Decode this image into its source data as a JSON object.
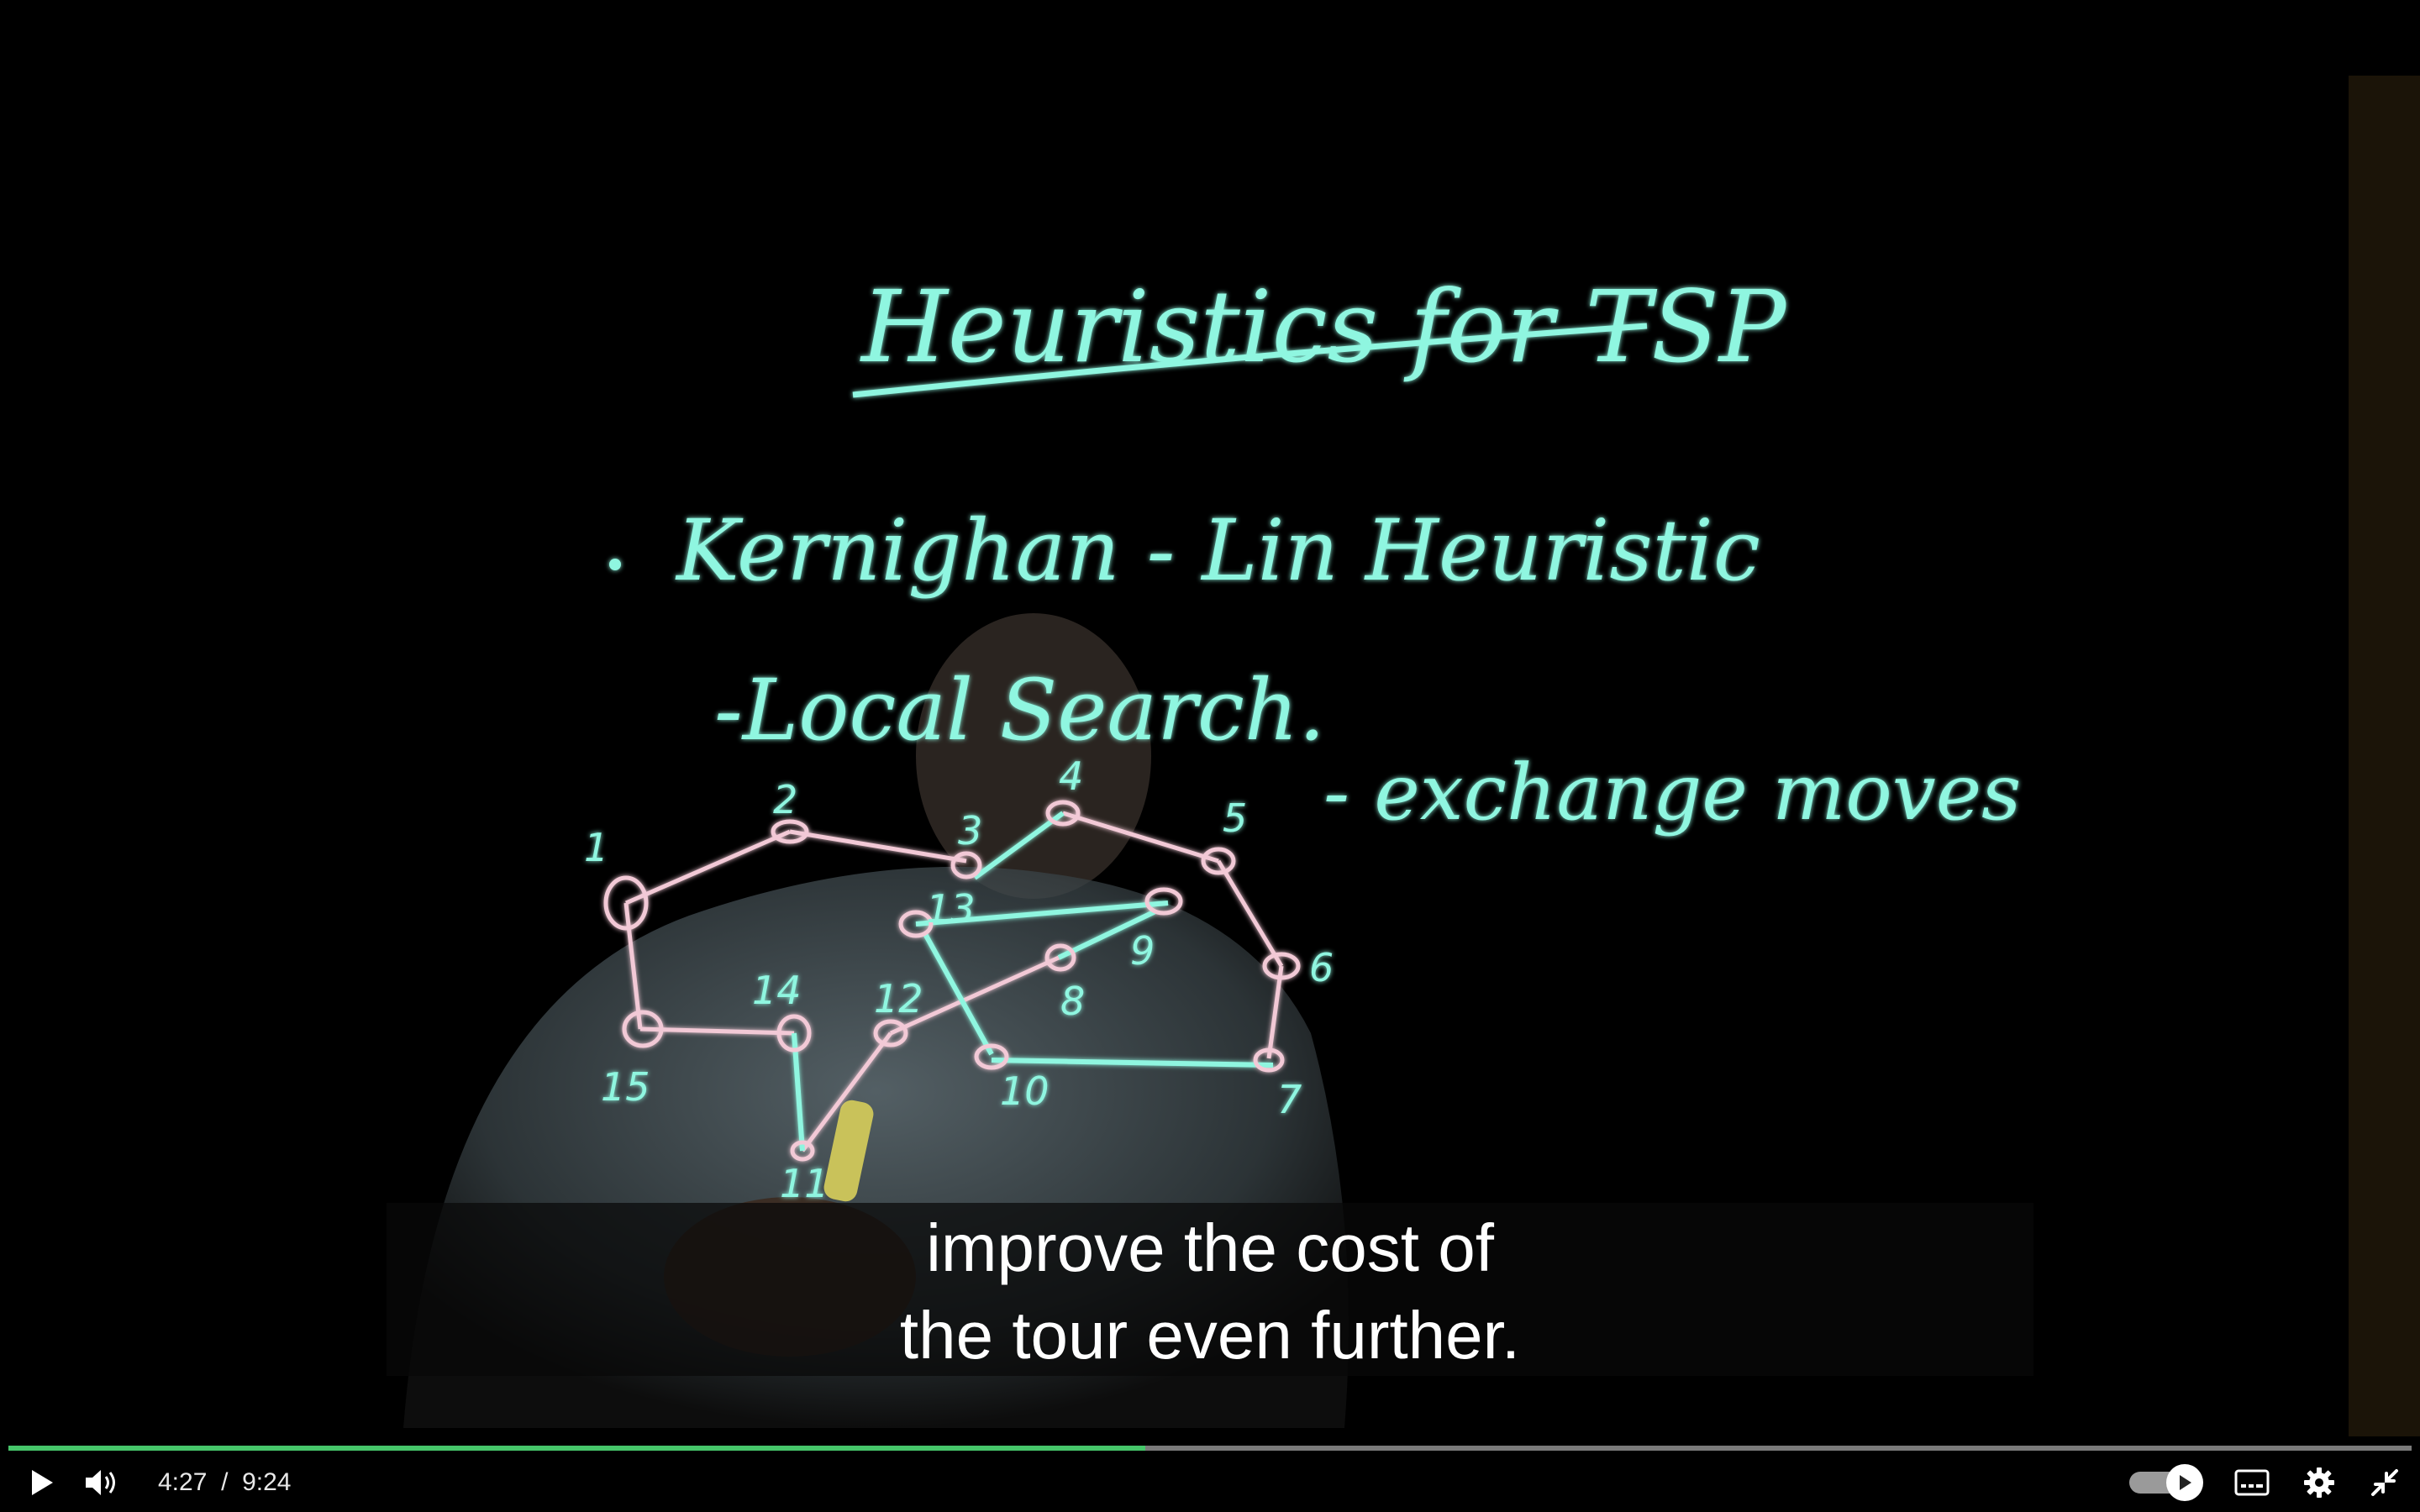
{
  "board": {
    "title": "Heuristics for TSP",
    "bullet_1": "Kernighan - Lin Heuristic",
    "bullet_2": "-Local Search.",
    "note": "- exchange moves",
    "node_labels": [
      "1",
      "2",
      "3",
      "4",
      "5",
      "6",
      "7",
      "8",
      "9",
      "10",
      "11",
      "12",
      "13",
      "14",
      "15"
    ]
  },
  "subtitles": {
    "line_1": "improve the cost of",
    "line_2": "the tour even further."
  },
  "controls": {
    "current_time": "4:27",
    "separator": "/",
    "duration": "9:24",
    "progress": 0.473
  },
  "icons": {
    "play": "play-icon",
    "volume": "volume-icon",
    "autoplay": "autoplay-toggle",
    "captions": "captions-icon",
    "settings": "gear-icon",
    "exit_fullscreen": "exit-fullscreen-icon"
  },
  "colors": {
    "ink": "#8ff6e0",
    "progress": "#46c66a"
  }
}
